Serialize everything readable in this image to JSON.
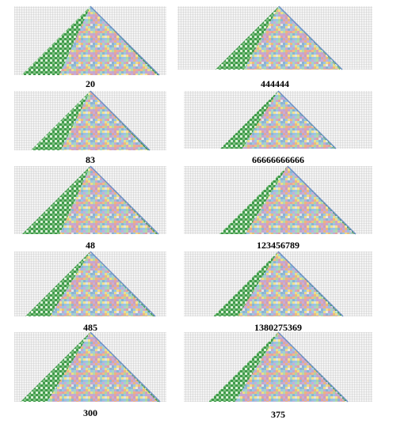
{
  "panels": [
    {
      "label": "20"
    },
    {
      "label": "444444"
    },
    {
      "label": "83"
    },
    {
      "label": "66666666666"
    },
    {
      "label": "48"
    },
    {
      "label": "123456789"
    },
    {
      "label": "485"
    },
    {
      "label": "1380275369"
    },
    {
      "label": "300"
    },
    {
      "label": "375"
    }
  ]
}
